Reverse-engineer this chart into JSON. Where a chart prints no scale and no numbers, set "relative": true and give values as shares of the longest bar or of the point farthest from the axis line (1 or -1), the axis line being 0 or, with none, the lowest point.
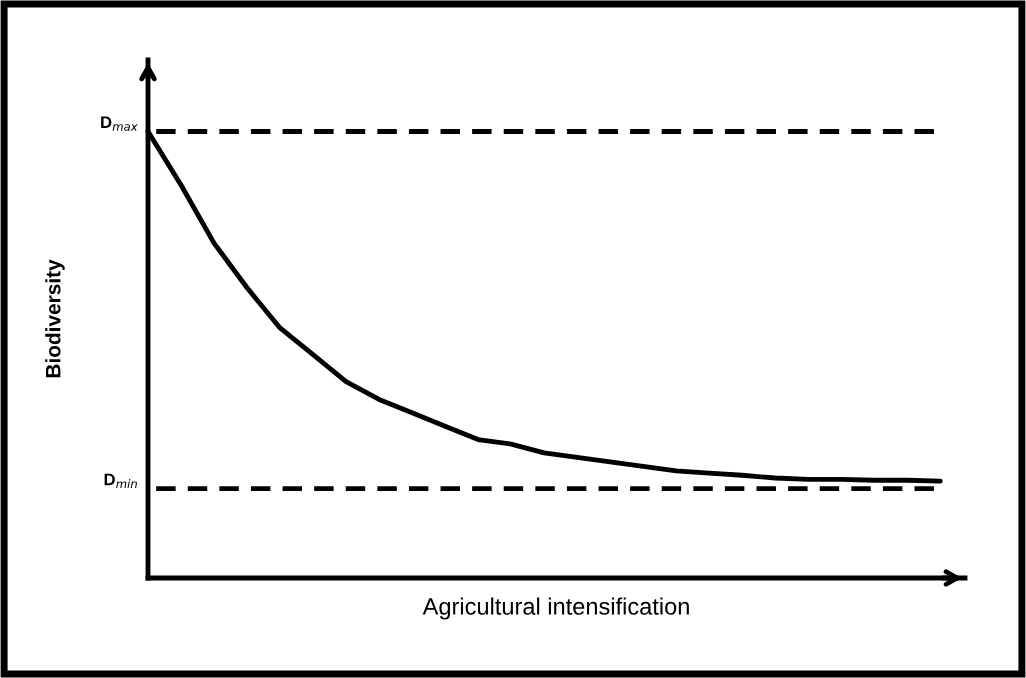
{
  "chart_data": {
    "type": "line",
    "relative": true,
    "xlabel": "Agricultural intensification",
    "ylabel": "Biodiversity",
    "categories": [
      null,
      null,
      null,
      null,
      null,
      null,
      null,
      null,
      null,
      null,
      null,
      null,
      null,
      null,
      null,
      null,
      null,
      null,
      null,
      null,
      null,
      null,
      null,
      null,
      null
    ],
    "series": [
      {
        "color": "#000000",
        "values": [
          1.0,
          0.88,
          0.75,
          0.65,
          0.56,
          0.5,
          0.44,
          0.4,
          0.37,
          0.34,
          0.31,
          0.3,
          0.28,
          0.27,
          0.26,
          0.25,
          0.24,
          0.235,
          0.23,
          0.224,
          0.221,
          0.221,
          0.219,
          0.219,
          0.217
        ]
      }
    ],
    "ref_lines": [
      {
        "axis": "y",
        "value": 1.0,
        "label": "D$_{max}$",
        "color": "#000000",
        "line_style": "dashed"
      },
      {
        "axis": "y",
        "value": 0.2,
        "label": "D$_{min}$",
        "color": "#000000",
        "line_style": "dashed"
      }
    ],
    "line_style": "solid",
    "marker": "none",
    "grid": false,
    "legend": false,
    "tick_labels": false
  }
}
